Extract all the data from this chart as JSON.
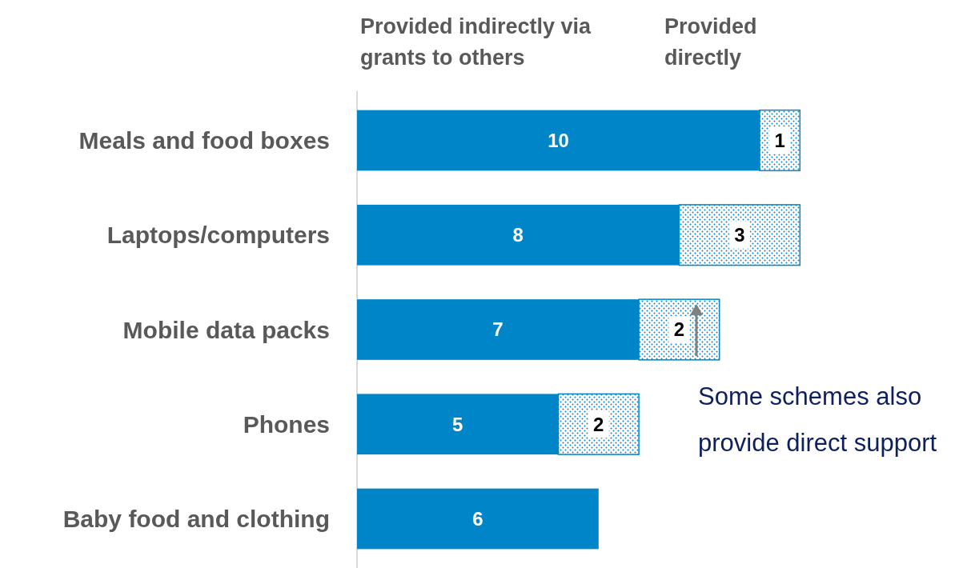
{
  "chart_data": {
    "type": "bar",
    "orientation": "horizontal",
    "stacked": true,
    "data_labels": true,
    "legend": "top",
    "categories": [
      "Meals and food boxes",
      "Laptops/computers",
      "Mobile data packs",
      "Phones",
      "Baby food and clothing"
    ],
    "series": [
      {
        "name": "Provided indirectly via grants to others",
        "color": "#0085c8",
        "values": [
          10,
          8,
          7,
          5,
          6
        ]
      },
      {
        "name": "Provided directly",
        "color": "#0085c8",
        "values": [
          1,
          3,
          2,
          2,
          null
        ]
      }
    ],
    "annotations": [
      "Some schemes also provide direct support"
    ]
  }
}
